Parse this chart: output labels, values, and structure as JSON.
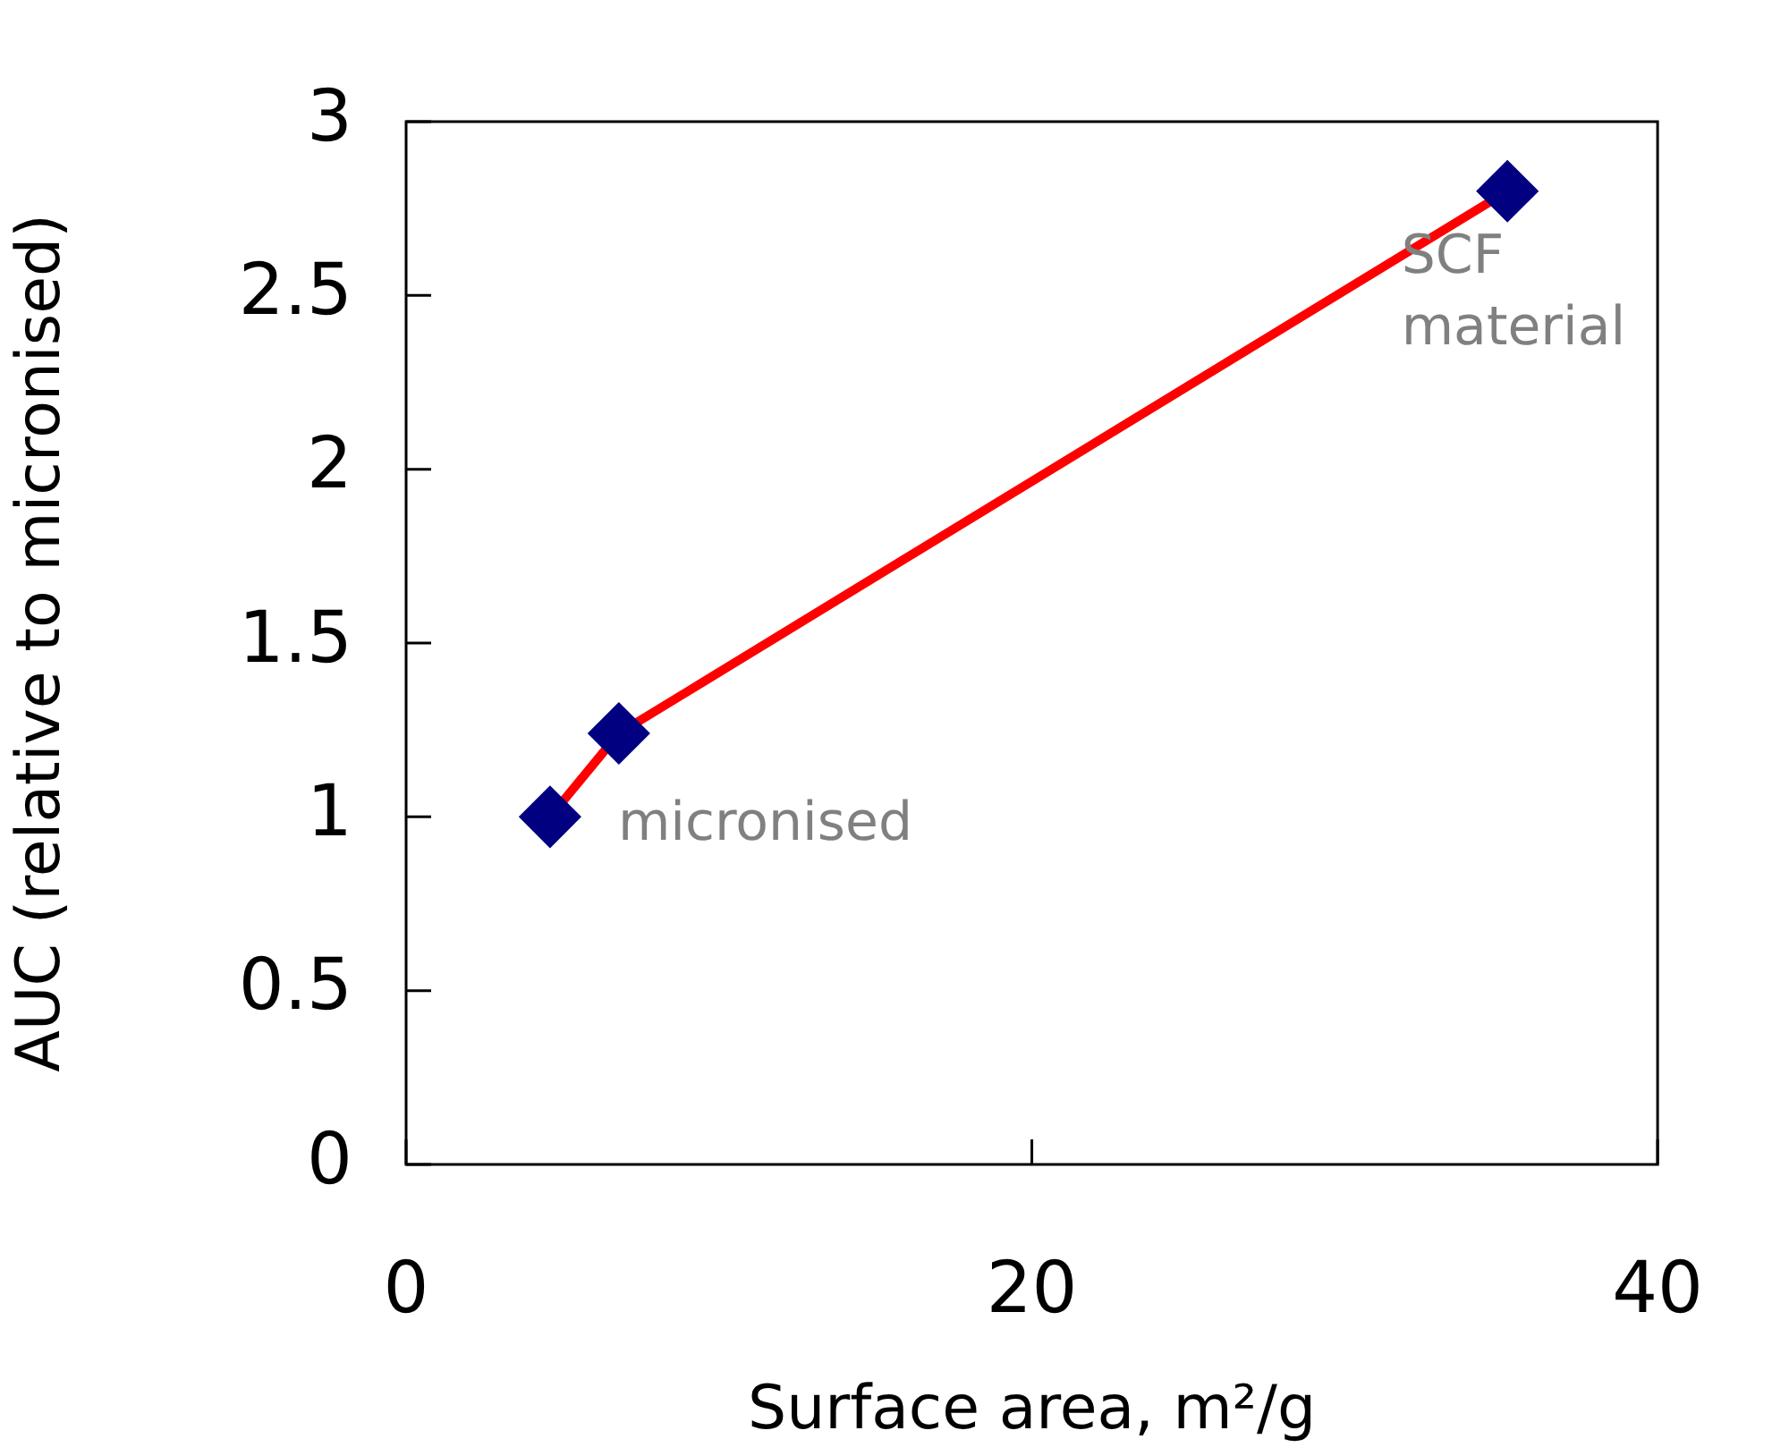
{
  "chart_data": {
    "type": "line",
    "xlabel": "Surface area, m²/g",
    "ylabel": "AUC (relative to micronised)",
    "x": [
      4.6,
      6.8,
      35.2
    ],
    "series": [
      {
        "color": "#ff0000",
        "colors": [
          "#000080",
          "#000080",
          "#000080"
        ],
        "values": [
          1.0,
          1.24,
          2.8
        ]
      }
    ],
    "xlim": [
      0,
      40
    ],
    "xticks": [
      0,
      20,
      40
    ],
    "ylim": [
      0,
      3
    ],
    "yticks": [
      0,
      0.5,
      1,
      1.5,
      2,
      2.5,
      3
    ],
    "grid": false,
    "legend": false,
    "marker": "diamond",
    "line_style": "solid",
    "annotations": [
      {
        "text": "micronised",
        "x": 4.6,
        "y": 1.0
      },
      {
        "text": "SCF material",
        "x": 35.2,
        "y": 2.8
      }
    ]
  }
}
